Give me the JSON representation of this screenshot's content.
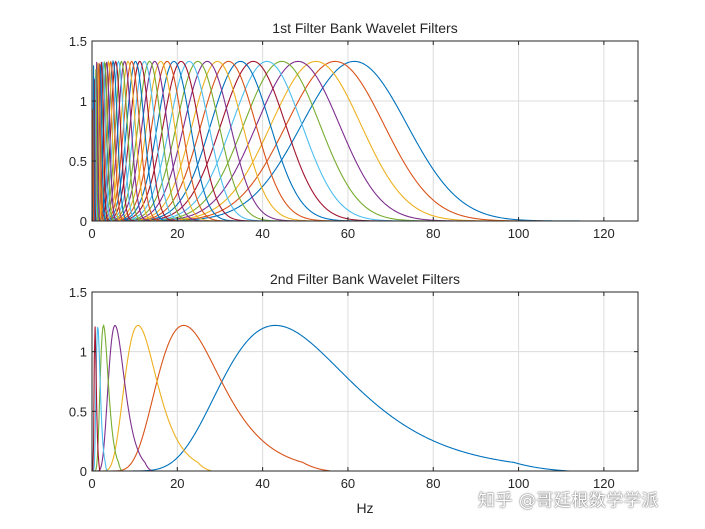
{
  "chart_data": [
    {
      "type": "line",
      "title": "1st Filter Bank Wavelet Filters",
      "xlabel": "",
      "ylabel": "",
      "xlim": [
        0,
        128
      ],
      "ylim": [
        0,
        1.5
      ],
      "xticks": [
        "0",
        "20",
        "40",
        "60",
        "80",
        "100",
        "120"
      ],
      "yticks": [
        "0",
        "0.5",
        "1",
        "1.5"
      ],
      "grid": true,
      "peak_height": 1.33,
      "series_centers_hz": [
        61.5,
        57,
        52.5,
        48.3,
        44.5,
        41,
        37.8,
        34.8,
        32,
        29.4,
        27,
        24.8,
        22.8,
        20.9,
        19.2,
        17.6,
        16.1,
        14.7,
        13.5,
        12.3,
        11.2,
        10.2,
        9.3,
        8.45,
        7.65,
        6.9,
        6.2,
        5.55,
        4.95,
        4.4,
        3.9,
        3.42,
        3,
        2.6,
        2.23,
        1.9,
        1.6,
        1.32,
        1.08,
        0.86,
        0.67,
        0.5,
        0.35,
        0.22
      ]
    },
    {
      "type": "line",
      "title": "2nd Filter Bank Wavelet Filters",
      "xlabel": "Hz",
      "ylabel": "",
      "xlim": [
        0,
        128
      ],
      "ylim": [
        0,
        1.5
      ],
      "xticks": [
        "0",
        "20",
        "40",
        "60",
        "80",
        "100",
        "120"
      ],
      "yticks": [
        "0",
        "0.5",
        "1",
        "1.5"
      ],
      "grid": true,
      "peak_height": 1.22,
      "series_centers_hz": [
        43,
        21.5,
        10.8,
        5.4,
        2.7,
        1.35,
        0.7
      ]
    }
  ],
  "colors": [
    "#0072BD",
    "#D95319",
    "#EDB120",
    "#7E2F8E",
    "#77AC30",
    "#4DBEEE",
    "#A2142F"
  ],
  "watermark": "知乎 @哥廷根数学学派"
}
